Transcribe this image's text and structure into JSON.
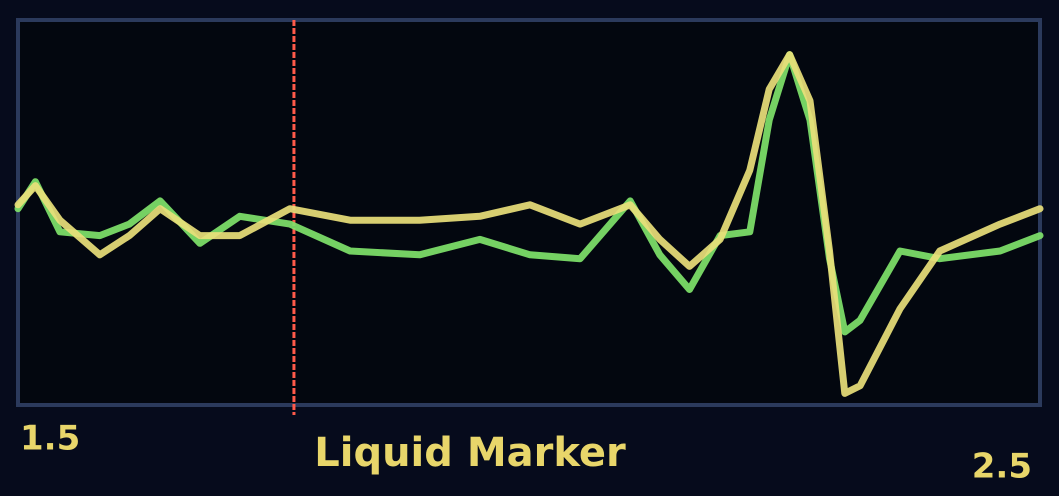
{
  "chart_data": {
    "type": "line",
    "x": [
      1.5,
      1.517,
      1.541,
      1.58,
      1.609,
      1.639,
      1.678,
      1.717,
      1.766,
      1.825,
      1.893,
      1.952,
      2.001,
      2.05,
      2.099,
      2.128,
      2.157,
      2.187,
      2.216,
      2.235,
      2.255,
      2.275,
      2.294,
      2.309,
      2.324,
      2.363,
      2.402,
      2.461,
      2.5
    ],
    "series": [
      {
        "color": "#7fe36a",
        "values": [
          51,
          58,
          45,
          44,
          47,
          53,
          42,
          49,
          47,
          40,
          39,
          43,
          39,
          38,
          53,
          39,
          30,
          44,
          45,
          74,
          91,
          74,
          38,
          19,
          22,
          40,
          38,
          40,
          44
        ]
      },
      {
        "color": "#e9e07a",
        "values": [
          52,
          57,
          48,
          39,
          44,
          51,
          44,
          44,
          51,
          48,
          48,
          49,
          52,
          47,
          52,
          43,
          36,
          43,
          61,
          82,
          91,
          79,
          40,
          3,
          5,
          25,
          40,
          47,
          51
        ]
      }
    ],
    "xlim": [
      1.5,
      2.5
    ],
    "xticks": [
      1.5,
      2.5
    ],
    "ylim": [
      0,
      100
    ],
    "annotation": "Liquid Marker",
    "marker_x": 1.77,
    "marker_color": "#ff5a4a"
  }
}
